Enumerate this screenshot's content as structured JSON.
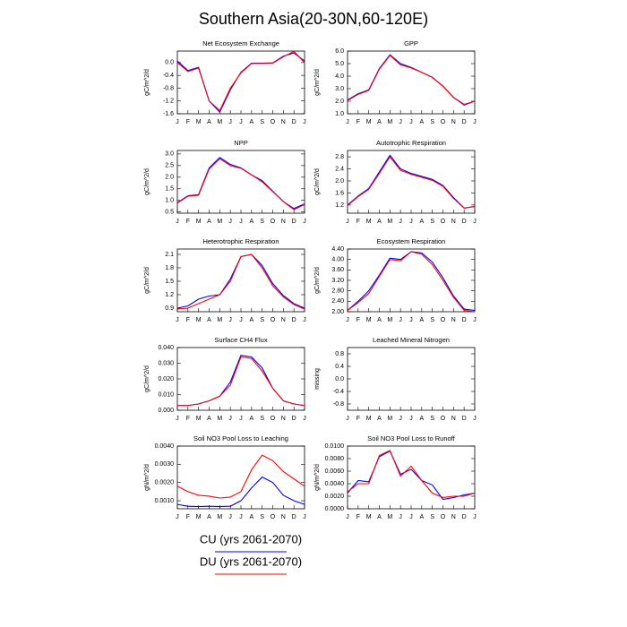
{
  "title": "Southern Asia(20-30N,60-120E)",
  "legend": [
    {
      "name": "CU (yrs 2061-2070)",
      "color": "#0000ff"
    },
    {
      "name": "DU (yrs 2061-2070)",
      "color": "#ff0000"
    }
  ],
  "chart_data": [
    {
      "type": "line",
      "title": "Net Ecosystem Exchange",
      "y_label": "gC/m^2/d",
      "categories": [
        "J",
        "F",
        "M",
        "A",
        "M",
        "J",
        "J",
        "A",
        "S",
        "O",
        "N",
        "D",
        "J"
      ],
      "ylim": [
        -1.6,
        0.36
      ],
      "yticks": [
        {
          "value": 0,
          "label": "0.0"
        },
        -0.4,
        -0.8,
        -1.2,
        -1.6
      ],
      "series": [
        {
          "values": [
            0.05,
            -0.25,
            -0.15,
            -1.2,
            -1.55,
            -0.85,
            -0.3,
            -0.02,
            -0.02,
            -0.01,
            0.2,
            0.3,
            0.05
          ]
        },
        {
          "values": [
            0.0,
            -0.28,
            -0.17,
            -1.2,
            -1.5,
            -0.8,
            -0.32,
            -0.03,
            -0.03,
            -0.02,
            0.18,
            0.35,
            0.0
          ]
        }
      ]
    },
    {
      "type": "line",
      "title": "GPP",
      "y_label": "gC/m^2/d",
      "categories": [
        "J",
        "F",
        "M",
        "A",
        "M",
        "J",
        "J",
        "A",
        "S",
        "O",
        "N",
        "D",
        "J"
      ],
      "ylim": [
        1.0,
        6.0
      ],
      "yticks": [
        {
          "value": 1,
          "label": "1.0"
        },
        {
          "value": 2,
          "label": "2.0"
        },
        {
          "value": 3,
          "label": "3.0"
        },
        {
          "value": 4,
          "label": "4.0"
        },
        {
          "value": 5,
          "label": "5.0"
        },
        {
          "value": 6,
          "label": "6.0"
        }
      ],
      "series": [
        {
          "values": [
            2.1,
            2.6,
            2.9,
            4.6,
            5.7,
            5.0,
            4.7,
            4.3,
            3.9,
            3.2,
            2.3,
            1.7,
            2.0
          ]
        },
        {
          "values": [
            2.05,
            2.55,
            2.85,
            4.55,
            5.65,
            4.9,
            4.65,
            4.3,
            3.9,
            3.2,
            2.3,
            1.75,
            2.0
          ]
        }
      ]
    },
    {
      "type": "line",
      "title": "NPP",
      "y_label": "gC/m^2/d",
      "categories": [
        "J",
        "F",
        "M",
        "A",
        "M",
        "J",
        "J",
        "A",
        "S",
        "O",
        "N",
        "D",
        "J"
      ],
      "ylim": [
        0.45,
        3.15
      ],
      "yticks": [
        0.5,
        {
          "value": 1,
          "label": "1.0"
        },
        1.5,
        {
          "value": 2,
          "label": "2.0"
        },
        2.5,
        {
          "value": 3,
          "label": "3.0"
        }
      ],
      "series": [
        {
          "values": [
            0.9,
            1.2,
            1.25,
            2.4,
            2.85,
            2.55,
            2.4,
            2.1,
            1.85,
            1.4,
            0.95,
            0.65,
            0.85
          ]
        },
        {
          "values": [
            0.88,
            1.18,
            1.22,
            2.35,
            2.8,
            2.5,
            2.38,
            2.1,
            1.8,
            1.38,
            0.95,
            0.6,
            0.82
          ]
        }
      ]
    },
    {
      "type": "line",
      "title": "Autotrophic Respiration",
      "y_label": "gC/m^2/d",
      "categories": [
        "J",
        "F",
        "M",
        "A",
        "M",
        "J",
        "J",
        "A",
        "S",
        "O",
        "N",
        "D",
        "J"
      ],
      "ylim": [
        0.93,
        3.01
      ],
      "yticks": [
        1.2,
        1.6,
        {
          "value": 2,
          "label": "2.0"
        },
        2.4,
        2.8
      ],
      "series": [
        {
          "values": [
            1.2,
            1.5,
            1.75,
            2.3,
            2.85,
            2.4,
            2.25,
            2.15,
            2.05,
            1.85,
            1.45,
            1.1,
            1.15
          ]
        },
        {
          "values": [
            1.18,
            1.48,
            1.72,
            2.25,
            2.8,
            2.35,
            2.22,
            2.12,
            2.02,
            1.82,
            1.42,
            1.1,
            1.15
          ]
        }
      ]
    },
    {
      "type": "line",
      "title": "Heterotrophic Respiration",
      "y_label": "gC/m^2/d",
      "categories": [
        "J",
        "F",
        "M",
        "A",
        "M",
        "J",
        "J",
        "A",
        "S",
        "O",
        "N",
        "D",
        "J"
      ],
      "ylim": [
        0.82,
        2.22
      ],
      "yticks": [
        0.9,
        1.2,
        1.5,
        1.8,
        2.1
      ],
      "series": [
        {
          "values": [
            0.9,
            0.95,
            1.1,
            1.17,
            1.2,
            1.55,
            2.05,
            2.1,
            1.85,
            1.45,
            1.18,
            1.0,
            0.9
          ]
        },
        {
          "values": [
            0.88,
            0.9,
            1.0,
            1.1,
            1.2,
            1.5,
            2.05,
            2.1,
            1.8,
            1.4,
            1.15,
            0.98,
            0.88
          ]
        }
      ]
    },
    {
      "type": "line",
      "title": "Ecosystem Respiration",
      "y_label": "gC/m^2/d",
      "categories": [
        "J",
        "F",
        "M",
        "A",
        "M",
        "J",
        "J",
        "A",
        "S",
        "O",
        "N",
        "D",
        "J"
      ],
      "ylim": [
        2.0,
        4.4
      ],
      "yticks": [
        {
          "value": 2,
          "label": "2.00"
        },
        {
          "value": 2.4,
          "label": "2.40"
        },
        {
          "value": 2.8,
          "label": "2.80"
        },
        {
          "value": 3.2,
          "label": "3.20"
        },
        {
          "value": 3.6,
          "label": "3.60"
        },
        {
          "value": 4,
          "label": "4.00"
        },
        {
          "value": 4.4,
          "label": "4.40"
        }
      ],
      "series": [
        {
          "values": [
            2.05,
            2.4,
            2.8,
            3.4,
            4.05,
            4.0,
            4.3,
            4.25,
            3.9,
            3.3,
            2.6,
            2.1,
            2.05
          ]
        },
        {
          "values": [
            2.05,
            2.35,
            2.7,
            3.35,
            4.0,
            3.95,
            4.3,
            4.2,
            3.8,
            3.2,
            2.55,
            2.05,
            2.0
          ]
        }
      ]
    },
    {
      "type": "line",
      "title": "Surface CH4 Flux",
      "y_label": "gC/m^2/d",
      "categories": [
        "J",
        "F",
        "M",
        "A",
        "M",
        "J",
        "J",
        "A",
        "S",
        "O",
        "N",
        "D",
        "J"
      ],
      "ylim": [
        0,
        0.04
      ],
      "yticks": [
        {
          "value": 0,
          "label": "0.000"
        },
        {
          "value": 0.01,
          "label": "0.010"
        },
        {
          "value": 0.02,
          "label": "0.020"
        },
        {
          "value": 0.03,
          "label": "0.030"
        },
        {
          "value": 0.04,
          "label": "0.040"
        }
      ],
      "series": [
        {
          "values": [
            0.003,
            0.003,
            0.004,
            0.006,
            0.009,
            0.018,
            0.035,
            0.034,
            0.027,
            0.014,
            0.006,
            0.004,
            0.003
          ]
        },
        {
          "values": [
            0.003,
            0.003,
            0.004,
            0.006,
            0.009,
            0.016,
            0.034,
            0.033,
            0.025,
            0.014,
            0.006,
            0.004,
            0.003
          ]
        }
      ]
    },
    {
      "type": "line",
      "title": "Leached Mineral Nitrogen",
      "y_label": "missing",
      "categories": [
        "J",
        "F",
        "M",
        "A",
        "M",
        "J",
        "J",
        "A",
        "S",
        "O",
        "N",
        "D",
        "J"
      ],
      "ylim": [
        -1,
        1
      ],
      "yticks": [
        0.8,
        0.4,
        {
          "value": 0,
          "label": "0.0"
        },
        -0.4,
        -0.8
      ],
      "series": []
    },
    {
      "type": "line",
      "title": "Soil NO3 Pool Loss to Leaching",
      "y_label": "gN/m^2/d",
      "categories": [
        "J",
        "F",
        "M",
        "A",
        "M",
        "J",
        "J",
        "A",
        "S",
        "O",
        "N",
        "D",
        "J"
      ],
      "ylim": [
        0.00056,
        0.004
      ],
      "yticks": [
        {
          "value": 0.001,
          "label": "0.0010"
        },
        {
          "value": 0.002,
          "label": "0.0020"
        },
        {
          "value": 0.003,
          "label": "0.0030"
        },
        {
          "value": 0.004,
          "label": "0.0040"
        }
      ],
      "series": [
        {
          "values": [
            0.0008,
            0.0007,
            0.00068,
            0.0007,
            0.00068,
            0.0007,
            0.001,
            0.0017,
            0.0023,
            0.002,
            0.0013,
            0.001,
            0.0008
          ]
        },
        {
          "values": [
            0.0018,
            0.0015,
            0.0013,
            0.00125,
            0.00115,
            0.0012,
            0.0015,
            0.0027,
            0.0035,
            0.0032,
            0.0026,
            0.0022,
            0.0018
          ]
        }
      ]
    },
    {
      "type": "line",
      "title": "Soil NO3 Pool Loss to Runoff",
      "y_label": "gN/m^2/d",
      "categories": [
        "J",
        "F",
        "M",
        "A",
        "M",
        "J",
        "J",
        "A",
        "S",
        "O",
        "N",
        "D",
        "J"
      ],
      "ylim": [
        0,
        0.01
      ],
      "yticks": [
        {
          "value": 0,
          "label": "0.0000"
        },
        {
          "value": 0.002,
          "label": "0.0020"
        },
        {
          "value": 0.004,
          "label": "0.0040"
        },
        {
          "value": 0.006,
          "label": "0.0060"
        },
        {
          "value": 0.008,
          "label": "0.0080"
        },
        {
          "value": 0.01,
          "label": "0.0100"
        }
      ],
      "series": [
        {
          "values": [
            0.0025,
            0.0045,
            0.0043,
            0.0083,
            0.0092,
            0.0055,
            0.0063,
            0.0045,
            0.0038,
            0.0015,
            0.0018,
            0.0022,
            0.0025
          ]
        },
        {
          "values": [
            0.0027,
            0.004,
            0.004,
            0.0085,
            0.0093,
            0.0052,
            0.0068,
            0.0045,
            0.0025,
            0.0018,
            0.002,
            0.002,
            0.0025
          ]
        }
      ]
    }
  ]
}
